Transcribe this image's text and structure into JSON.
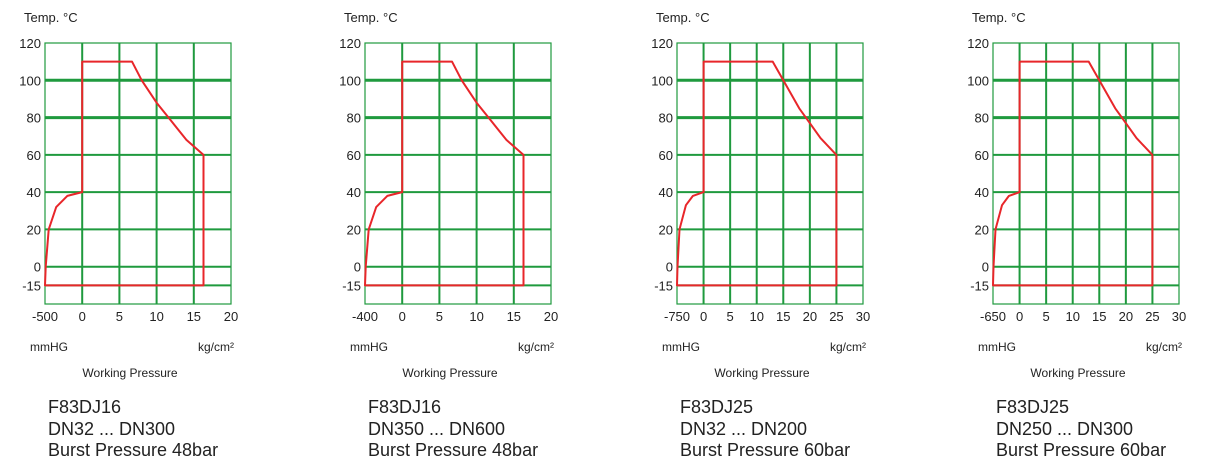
{
  "colors": {
    "grid": "#1f9a3e",
    "envelope": "#e8262a"
  },
  "chart_data": [
    {
      "type": "line",
      "title": "F83DJ16",
      "ylabel": "Temp. °C",
      "xlabel": "Working Pressure",
      "x_unit_left": "mmHG",
      "x_unit_right": "kg/cm²",
      "y_ticks": [
        120,
        100,
        80,
        60,
        40,
        20,
        0,
        -15
      ],
      "x_ticks": [
        -500,
        0,
        5,
        10,
        15,
        20
      ],
      "caption": [
        "F83DJ16",
        "DN32 ... DN300",
        "Burst Pressure 48bar"
      ],
      "series": [
        {
          "name": "operating envelope",
          "points": [
            [
              -500,
              -15
            ],
            [
              -490,
              0
            ],
            [
              -450,
              20
            ],
            [
              -350,
              32
            ],
            [
              -200,
              38
            ],
            [
              0,
              40
            ],
            [
              0,
              110
            ],
            [
              6.7,
              110
            ],
            [
              8,
              100
            ],
            [
              10,
              88
            ],
            [
              12,
              78
            ],
            [
              14,
              68
            ],
            [
              16.3,
              60
            ],
            [
              16.3,
              -15
            ]
          ]
        }
      ]
    },
    {
      "type": "line",
      "title": "F83DJ16",
      "ylabel": "Temp. °C",
      "xlabel": "Working Pressure",
      "x_unit_left": "mmHG",
      "x_unit_right": "kg/cm²",
      "y_ticks": [
        120,
        100,
        80,
        60,
        40,
        20,
        0,
        -15
      ],
      "x_ticks": [
        -400,
        0,
        5,
        10,
        15,
        20
      ],
      "caption": [
        "F83DJ16",
        "DN350 ... DN600",
        "Burst Pressure 48bar"
      ],
      "series": [
        {
          "name": "operating envelope",
          "points": [
            [
              -400,
              -15
            ],
            [
              -392,
              0
            ],
            [
              -360,
              20
            ],
            [
              -280,
              32
            ],
            [
              -160,
              38
            ],
            [
              0,
              40
            ],
            [
              0,
              110
            ],
            [
              6.7,
              110
            ],
            [
              8,
              100
            ],
            [
              10,
              88
            ],
            [
              12,
              78
            ],
            [
              14,
              68
            ],
            [
              16.3,
              60
            ],
            [
              16.3,
              -15
            ]
          ]
        }
      ]
    },
    {
      "type": "line",
      "title": "F83DJ25",
      "ylabel": "Temp. °C",
      "xlabel": "Working Pressure",
      "x_unit_left": "mmHG",
      "x_unit_right": "kg/cm²",
      "y_ticks": [
        120,
        100,
        80,
        60,
        40,
        20,
        0,
        -15
      ],
      "x_ticks": [
        -750,
        0,
        5,
        10,
        15,
        20,
        25,
        30
      ],
      "caption": [
        "F83DJ25",
        "DN32 ... DN200",
        "Burst Pressure 60bar"
      ],
      "series": [
        {
          "name": "operating envelope",
          "points": [
            [
              -750,
              -15
            ],
            [
              -735,
              0
            ],
            [
              -680,
              20
            ],
            [
              -500,
              33
            ],
            [
              -300,
              38
            ],
            [
              0,
              40
            ],
            [
              0,
              110
            ],
            [
              13,
              110
            ],
            [
              15,
              100
            ],
            [
              18,
              85
            ],
            [
              20,
              77
            ],
            [
              22,
              69
            ],
            [
              25,
              60
            ],
            [
              25,
              -15
            ]
          ]
        }
      ]
    },
    {
      "type": "line",
      "title": "F83DJ25",
      "ylabel": "Temp. °C",
      "xlabel": "Working Pressure",
      "x_unit_left": "mmHG",
      "x_unit_right": "kg/cm²",
      "y_ticks": [
        120,
        100,
        80,
        60,
        40,
        20,
        0,
        -15
      ],
      "x_ticks": [
        -650,
        0,
        5,
        10,
        15,
        20,
        25,
        30
      ],
      "caption": [
        "F83DJ25",
        "DN250 ... DN300",
        "Burst Pressure 60bar"
      ],
      "series": [
        {
          "name": "operating envelope",
          "points": [
            [
              -650,
              -15
            ],
            [
              -637,
              0
            ],
            [
              -590,
              20
            ],
            [
              -430,
              33
            ],
            [
              -260,
              38
            ],
            [
              0,
              40
            ],
            [
              0,
              110
            ],
            [
              13,
              110
            ],
            [
              15,
              100
            ],
            [
              18,
              85
            ],
            [
              20,
              77
            ],
            [
              22,
              69
            ],
            [
              25,
              60
            ],
            [
              25,
              -15
            ]
          ]
        }
      ]
    }
  ]
}
